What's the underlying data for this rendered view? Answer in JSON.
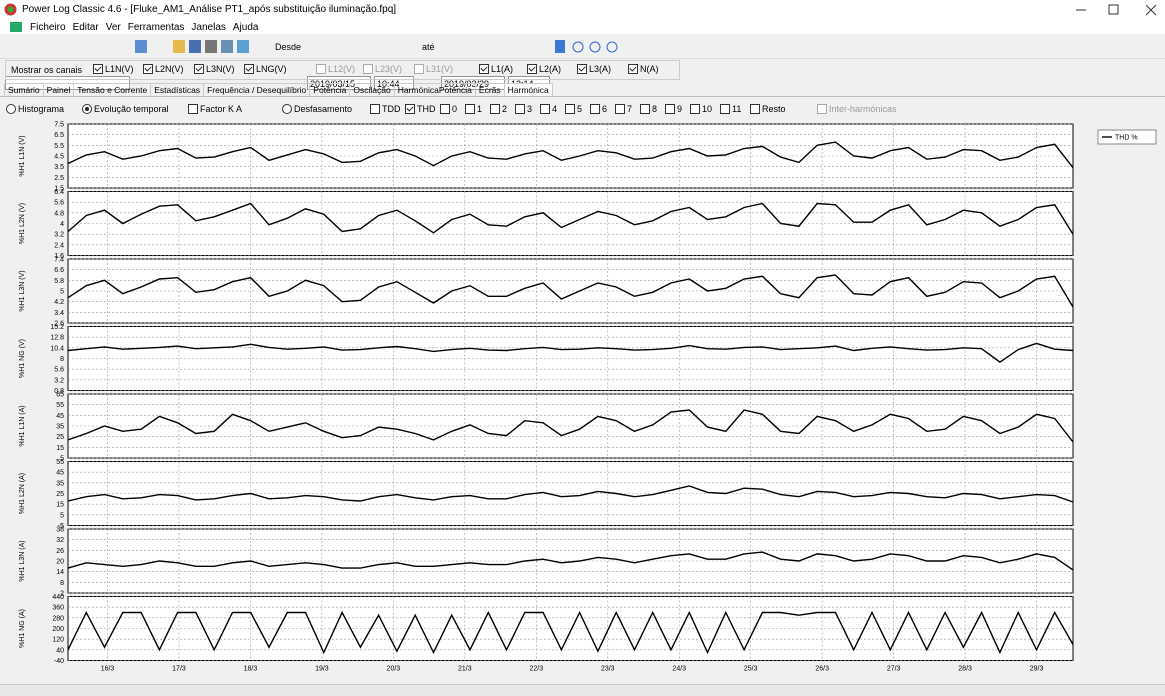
{
  "window": {
    "title": "Power Log Classic 4.6 - [Fluke_AM1_Análise PT1_após substituição iluminação.fpq]",
    "menu": [
      "Ficheiro",
      "Editar",
      "Ver",
      "Ferramentas",
      "Janelas",
      "Ajuda"
    ]
  },
  "toolbar": {
    "from_label": "Desde",
    "date_from": "2019/03/15",
    "time_from": "10:44",
    "to_label": "até",
    "date_to": "2019/03/29",
    "time_to": "12:14"
  },
  "channels": {
    "label": "Mostrar os canais",
    "items": [
      {
        "label": "L1N(V)",
        "checked": true,
        "enabled": true
      },
      {
        "label": "L2N(V)",
        "checked": true,
        "enabled": true
      },
      {
        "label": "L3N(V)",
        "checked": true,
        "enabled": true
      },
      {
        "label": "LNG(V)",
        "checked": true,
        "enabled": true
      },
      {
        "label": "L12(V)",
        "checked": false,
        "enabled": false
      },
      {
        "label": "L23(V)",
        "checked": false,
        "enabled": false
      },
      {
        "label": "L31(V)",
        "checked": false,
        "enabled": false
      },
      {
        "label": "L1(A)",
        "checked": true,
        "enabled": true
      },
      {
        "label": "L2(A)",
        "checked": true,
        "enabled": true
      },
      {
        "label": "L3(A)",
        "checked": true,
        "enabled": true
      },
      {
        "label": "N(A)",
        "checked": true,
        "enabled": true
      }
    ]
  },
  "tabs": [
    {
      "label": "Sumário",
      "selected": false
    },
    {
      "label": "Painel",
      "selected": false
    },
    {
      "label": "Tensão e Corrente",
      "selected": false
    },
    {
      "label": "Estadísticas",
      "selected": false
    },
    {
      "label": "Frequência / Desequilíbrio",
      "selected": false
    },
    {
      "label": "Potência",
      "selected": false
    },
    {
      "label": "Oscilação",
      "selected": false
    },
    {
      "label": "HarmónicaPotência",
      "selected": false
    },
    {
      "label": "Ecrãs",
      "selected": false
    },
    {
      "label": "Harmónica",
      "selected": true
    }
  ],
  "options": {
    "radios": [
      {
        "label": "Histograma",
        "selected": false
      },
      {
        "label": "Evolução temporal",
        "selected": true
      },
      {
        "label": "Factor K A",
        "selected": false,
        "box": true
      },
      {
        "label": "Desfasamento",
        "selected": false
      }
    ],
    "checks": [
      {
        "label": "TDD",
        "checked": false,
        "enabled": true
      },
      {
        "label": "THD",
        "checked": true,
        "enabled": true
      },
      {
        "label": "0",
        "checked": false,
        "enabled": true
      },
      {
        "label": "1",
        "checked": false,
        "enabled": true
      },
      {
        "label": "2",
        "checked": false,
        "enabled": true
      },
      {
        "label": "3",
        "checked": false,
        "enabled": true
      },
      {
        "label": "4",
        "checked": false,
        "enabled": true
      },
      {
        "label": "5",
        "checked": false,
        "enabled": true
      },
      {
        "label": "6",
        "checked": false,
        "enabled": true
      },
      {
        "label": "7",
        "checked": false,
        "enabled": true
      },
      {
        "label": "8",
        "checked": false,
        "enabled": true
      },
      {
        "label": "9",
        "checked": false,
        "enabled": true
      },
      {
        "label": "10",
        "checked": false,
        "enabled": true
      },
      {
        "label": "11",
        "checked": false,
        "enabled": true
      },
      {
        "label": "Resto",
        "checked": false,
        "enabled": true
      },
      {
        "label": "Inter-harmónicas",
        "checked": false,
        "enabled": false
      }
    ]
  },
  "legend": {
    "label": "THD %",
    "color": "#000000"
  },
  "chart_data": [
    {
      "type": "line",
      "ylabel": "%H1 L1N (V)",
      "color": "#000000",
      "ylim": [
        1.5,
        7.5
      ],
      "yticks": [
        7.5,
        6.5,
        5.5,
        4.5,
        3.5,
        2.5,
        1.5
      ],
      "grid": true,
      "values": [
        3.8,
        4.6,
        4.9,
        4.2,
        4.5,
        5.0,
        5.2,
        4.3,
        4.4,
        4.9,
        5.3,
        4.1,
        4.6,
        5.1,
        4.7,
        3.9,
        4.0,
        4.8,
        5.1,
        4.5,
        3.6,
        4.5,
        4.9,
        4.3,
        4.2,
        4.7,
        5.0,
        4.1,
        4.5,
        5.0,
        4.8,
        4.2,
        4.3,
        4.9,
        5.2,
        4.5,
        4.6,
        5.2,
        5.4,
        4.4,
        3.9,
        5.5,
        5.8,
        4.5,
        4.3,
        5.0,
        5.3,
        4.2,
        4.4,
        5.1,
        5.0,
        4.1,
        4.4,
        5.3,
        5.6,
        3.4
      ]
    },
    {
      "type": "line",
      "ylabel": "%H1 L2N (V)",
      "color": "#000000",
      "ylim": [
        1.6,
        6.4
      ],
      "yticks": [
        6.4,
        5.6,
        4.8,
        4,
        3.2,
        2.4,
        1.6
      ],
      "grid": true,
      "values": [
        3.4,
        4.6,
        5.0,
        4.0,
        4.7,
        5.3,
        5.4,
        4.2,
        4.5,
        5.0,
        5.5,
        3.9,
        4.4,
        5.1,
        4.7,
        3.4,
        3.6,
        4.6,
        5.0,
        4.2,
        3.3,
        4.3,
        4.7,
        3.9,
        3.8,
        4.5,
        4.8,
        3.7,
        4.3,
        4.9,
        4.6,
        3.9,
        4.2,
        4.9,
        5.2,
        4.3,
        4.5,
        5.2,
        5.5,
        4.0,
        3.8,
        5.5,
        5.4,
        4.1,
        4.1,
        5.0,
        5.4,
        3.9,
        4.3,
        5.0,
        4.8,
        3.8,
        4.3,
        5.2,
        5.4,
        3.2
      ]
    },
    {
      "type": "line",
      "ylabel": "%H1 L3N (V)",
      "color": "#000000",
      "ylim": [
        2.6,
        7.4
      ],
      "yticks": [
        7.4,
        6.6,
        5.8,
        5,
        4.2,
        3.4,
        2.6
      ],
      "grid": true,
      "values": [
        4.5,
        5.4,
        5.8,
        4.8,
        5.3,
        5.9,
        6.0,
        4.9,
        5.1,
        5.7,
        6.0,
        4.6,
        5.0,
        5.8,
        5.4,
        4.2,
        4.3,
        5.3,
        5.7,
        4.9,
        4.1,
        5.0,
        5.4,
        4.6,
        4.6,
        5.2,
        5.6,
        4.4,
        5.0,
        5.6,
        5.3,
        4.6,
        4.9,
        5.6,
        5.9,
        5.0,
        5.2,
        5.9,
        6.1,
        4.8,
        4.5,
        6.0,
        6.2,
        4.8,
        4.7,
        5.7,
        6.0,
        4.6,
        4.9,
        5.7,
        5.6,
        4.5,
        5.0,
        5.9,
        6.1,
        3.8
      ]
    },
    {
      "type": "line",
      "ylabel": "%H1 NG (V)",
      "color": "#000000",
      "ylim": [
        0.8,
        15.2
      ],
      "yticks": [
        15.2,
        12.8,
        10.4,
        8,
        5.6,
        3.2,
        0.8
      ],
      "grid": true,
      "values": [
        9.8,
        10.2,
        10.6,
        10.1,
        10.3,
        10.5,
        10.8,
        10.2,
        10.4,
        10.6,
        11.2,
        10.5,
        10.1,
        10.3,
        10.6,
        9.9,
        10.0,
        10.4,
        10.7,
        10.2,
        9.6,
        10.0,
        10.3,
        9.9,
        9.8,
        10.2,
        10.5,
        10.0,
        10.1,
        10.4,
        10.2,
        9.9,
        10.0,
        10.3,
        10.9,
        10.2,
        10.1,
        10.5,
        10.6,
        10.0,
        10.2,
        10.4,
        10.8,
        9.8,
        10.3,
        10.6,
        10.2,
        9.9,
        10.0,
        10.4,
        10.2,
        7.2,
        10.0,
        11.4,
        10.1,
        9.8
      ]
    },
    {
      "type": "line",
      "ylabel": "%H1 L1N (A)",
      "color": "#000000",
      "ylim": [
        5,
        65
      ],
      "yticks": [
        65,
        55,
        45,
        35,
        25,
        15,
        5
      ],
      "grid": true,
      "values": [
        22,
        28,
        35,
        30,
        32,
        44,
        38,
        28,
        30,
        46,
        40,
        30,
        34,
        38,
        30,
        24,
        26,
        34,
        32,
        28,
        22,
        30,
        36,
        28,
        26,
        40,
        38,
        26,
        32,
        44,
        40,
        30,
        36,
        48,
        50,
        34,
        30,
        50,
        46,
        30,
        28,
        44,
        40,
        30,
        36,
        46,
        42,
        30,
        32,
        44,
        40,
        28,
        34,
        46,
        42,
        20
      ]
    },
    {
      "type": "line",
      "ylabel": "%H1 L2N (A)",
      "color": "#000000",
      "ylim": [
        -5,
        55
      ],
      "yticks": [
        55,
        45,
        35,
        25,
        15,
        5,
        -5
      ],
      "grid": true,
      "values": [
        18,
        22,
        24,
        20,
        21,
        24,
        23,
        19,
        20,
        23,
        25,
        20,
        21,
        23,
        22,
        19,
        18,
        22,
        24,
        21,
        19,
        22,
        23,
        20,
        20,
        24,
        26,
        22,
        23,
        27,
        25,
        22,
        24,
        28,
        32,
        26,
        25,
        30,
        29,
        24,
        22,
        27,
        26,
        22,
        23,
        26,
        25,
        22,
        21,
        25,
        24,
        20,
        22,
        24,
        23,
        17
      ]
    },
    {
      "type": "line",
      "ylabel": "%H1 L3N (A)",
      "color": "#000000",
      "ylim": [
        2,
        38
      ],
      "yticks": [
        38,
        32,
        26,
        20,
        14,
        8,
        2
      ],
      "grid": true,
      "values": [
        16,
        19,
        18,
        17,
        18,
        20,
        19,
        17,
        17,
        19,
        20,
        17,
        18,
        19,
        18,
        16,
        16,
        18,
        19,
        17,
        17,
        18,
        19,
        18,
        18,
        20,
        21,
        19,
        20,
        22,
        21,
        19,
        21,
        23,
        24,
        21,
        21,
        24,
        25,
        21,
        20,
        24,
        23,
        20,
        21,
        24,
        23,
        20,
        20,
        23,
        22,
        19,
        21,
        24,
        22,
        15
      ]
    },
    {
      "type": "line",
      "ylabel": "%H1 NG (A)",
      "color": "#000000",
      "ylim": [
        -40,
        440
      ],
      "yticks": [
        440,
        360,
        280,
        200,
        120,
        40,
        -40
      ],
      "grid": true,
      "xticks": [
        "16/3",
        "17/3",
        "18/3",
        "19/3",
        "20/3",
        "21/3",
        "22/3",
        "23/3",
        "24/3",
        "25/3",
        "26/3",
        "27/3",
        "28/3",
        "29/3"
      ],
      "values": [
        40,
        320,
        60,
        320,
        320,
        40,
        320,
        320,
        40,
        320,
        320,
        60,
        320,
        320,
        20,
        320,
        60,
        300,
        30,
        300,
        20,
        300,
        40,
        320,
        40,
        320,
        320,
        40,
        320,
        30,
        320,
        40,
        320,
        40,
        320,
        20,
        320,
        40,
        320,
        320,
        300,
        320,
        320,
        40,
        320,
        40,
        320,
        40,
        320,
        60,
        320,
        20,
        320,
        40,
        320,
        80
      ]
    }
  ]
}
